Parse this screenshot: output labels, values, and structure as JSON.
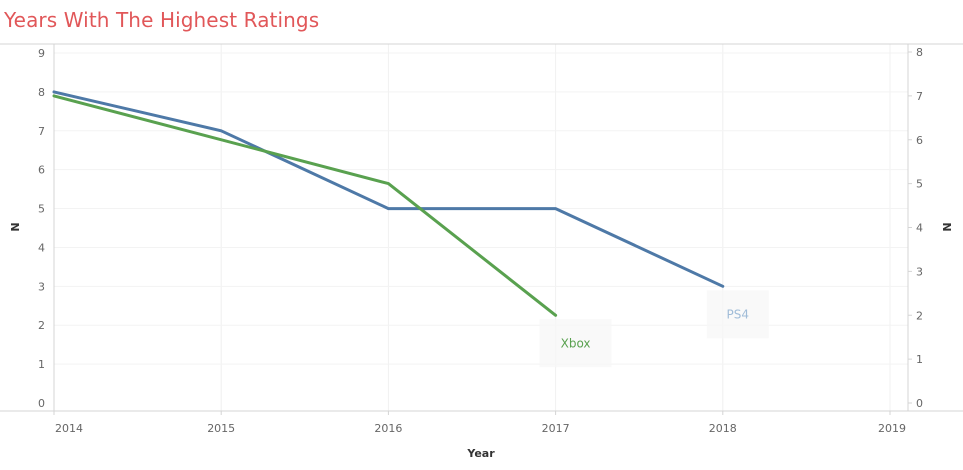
{
  "chart_data": {
    "type": "line",
    "title": "Years With The Highest Ratings",
    "xlabel": "Year",
    "ylabel_left": "N",
    "ylabel_right": "N",
    "x_ticks": [
      "2014",
      "2015",
      "2016",
      "2017",
      "2018",
      "2019"
    ],
    "xlim": [
      2014,
      2019
    ],
    "y_left_ticks": [
      "0",
      "1",
      "2",
      "3",
      "4",
      "5",
      "6",
      "7",
      "8",
      "9"
    ],
    "ylim_left": [
      0,
      9
    ],
    "y_right_ticks": [
      "0",
      "1",
      "2",
      "3",
      "4",
      "5",
      "6",
      "7",
      "8"
    ],
    "ylim_right": [
      0,
      8
    ],
    "grid": true,
    "series": [
      {
        "name": "PS4",
        "axis": "left",
        "color": "#4e79a7",
        "label_color": "#a0bcd8",
        "x": [
          2014,
          2015,
          2016,
          2017,
          2018
        ],
        "values": [
          8,
          7,
          5,
          5,
          3
        ]
      },
      {
        "name": "Xbox",
        "axis": "right",
        "color": "#59a14f",
        "label_color": "#59a14f",
        "x": [
          2014,
          2016,
          2017
        ],
        "values": [
          7,
          5,
          2
        ]
      }
    ]
  }
}
